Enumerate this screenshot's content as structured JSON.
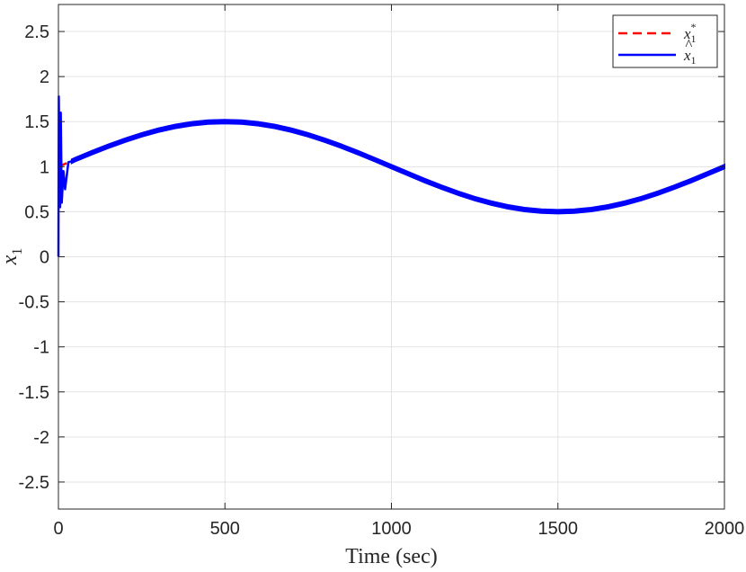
{
  "chart_data": {
    "type": "line",
    "xlabel": "Time (sec)",
    "ylabel": "x_1",
    "ylabel_parts": {
      "base": "x",
      "sub": "1"
    },
    "xlim": [
      0,
      2000
    ],
    "ylim": [
      -2.8,
      2.8
    ],
    "xticks": [
      0,
      500,
      1000,
      1500,
      2000
    ],
    "xtick_labels": [
      "0",
      "500",
      "1000",
      "1500",
      "2000"
    ],
    "yticks": [
      -2.5,
      -2,
      -1.5,
      -1,
      -0.5,
      0,
      0.5,
      1,
      1.5,
      2,
      2.5
    ],
    "ytick_labels": [
      "-2.5",
      "-2",
      "-1.5",
      "-1",
      "-0.5",
      "0",
      "0.5",
      "1",
      "1.5",
      "2",
      "2.5"
    ],
    "grid": true,
    "legend_position": "top-right",
    "series": [
      {
        "name": "x_1^*",
        "label_parts": {
          "base": "x",
          "sub": "1",
          "sup": "*"
        },
        "color": "#ff0000",
        "style": "dashed",
        "x": [
          0,
          10,
          20,
          30,
          40,
          50,
          100,
          150,
          200,
          250,
          300,
          350,
          400,
          450,
          500,
          550,
          600,
          650,
          700,
          750,
          800,
          850,
          900,
          950,
          1000,
          1050,
          1100,
          1150,
          1200,
          1250,
          1300,
          1350,
          1400,
          1450,
          1500,
          1550,
          1600,
          1650,
          1700,
          1750,
          1800,
          1850,
          1900,
          1950,
          2000
        ],
        "values": [
          1.0,
          1.016,
          1.031,
          1.047,
          1.063,
          1.078,
          1.155,
          1.227,
          1.294,
          1.354,
          1.405,
          1.446,
          1.476,
          1.494,
          1.5,
          1.494,
          1.476,
          1.446,
          1.405,
          1.354,
          1.294,
          1.227,
          1.155,
          1.078,
          1.0,
          0.922,
          0.845,
          0.773,
          0.706,
          0.646,
          0.595,
          0.554,
          0.524,
          0.506,
          0.5,
          0.506,
          0.524,
          0.554,
          0.595,
          0.646,
          0.706,
          0.773,
          0.845,
          0.922,
          1.0
        ]
      },
      {
        "name": "x̂_1",
        "label_parts": {
          "base": "x",
          "hat": true,
          "sub": "1"
        },
        "color": "#0000ff",
        "style": "solid",
        "band_halfwidth": 0.02,
        "x": [
          0,
          1,
          3,
          5,
          7,
          10,
          15,
          20,
          30,
          40,
          50,
          100,
          150,
          200,
          250,
          300,
          350,
          400,
          450,
          500,
          550,
          600,
          650,
          700,
          750,
          800,
          850,
          900,
          950,
          1000,
          1050,
          1100,
          1150,
          1200,
          1250,
          1300,
          1350,
          1400,
          1450,
          1500,
          1550,
          1600,
          1650,
          1700,
          1750,
          1800,
          1850,
          1900,
          1950,
          2000
        ],
        "values": [
          0.0,
          1.78,
          1.1,
          0.55,
          1.6,
          0.6,
          0.95,
          0.75,
          1.05,
          1.06,
          1.078,
          1.155,
          1.227,
          1.294,
          1.354,
          1.405,
          1.446,
          1.476,
          1.494,
          1.5,
          1.494,
          1.476,
          1.446,
          1.405,
          1.354,
          1.294,
          1.227,
          1.155,
          1.078,
          1.0,
          0.922,
          0.845,
          0.773,
          0.706,
          0.646,
          0.595,
          0.554,
          0.524,
          0.506,
          0.5,
          0.506,
          0.524,
          0.554,
          0.595,
          0.646,
          0.706,
          0.773,
          0.845,
          0.922,
          1.0
        ]
      }
    ]
  }
}
